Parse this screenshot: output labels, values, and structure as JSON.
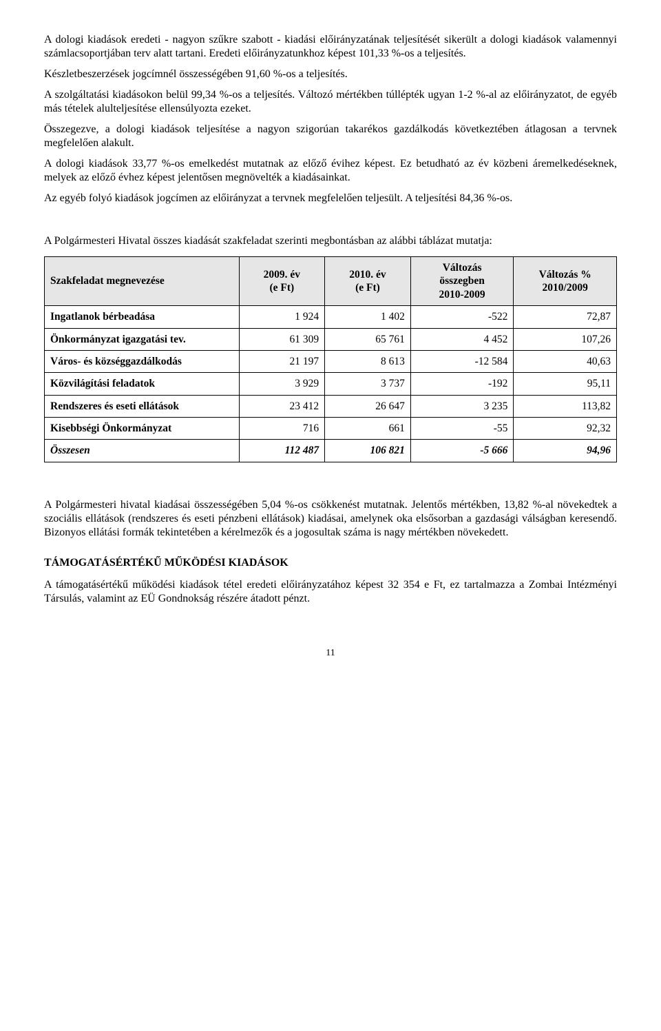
{
  "paragraphs": {
    "p1": "A dologi kiadások eredeti - nagyon szűkre szabott - kiadási előirányzatának teljesítését sikerült a dologi kiadások valamennyi számlacsoportjában terv alatt tartani. Eredeti előirányzatunkhoz képest 101,33 %-os a teljesítés.",
    "p2": "Készletbeszerzések jogcímnél összességében 91,60 %-os a teljesítés.",
    "p3": "A szolgáltatási kiadásokon belül 99,34 %-os a teljesítés. Változó mértékben túllépték ugyan 1-2 %-al az előirányzatot, de egyéb más tételek alulteljesítése ellensúlyozta ezeket.",
    "p4": "Összegezve, a dologi kiadások teljesítése a nagyon szigorúan takarékos gazdálkodás következtében átlagosan a tervnek megfelelően alakult.",
    "p5": "A dologi kiadások 33,77 %-os emelkedést mutatnak az előző évihez képest. Ez betudható az év közbeni áremelkedéseknek, melyek az előző évhez képest jelentősen megnövelték a kiadásainkat.",
    "p6": "Az egyéb folyó kiadások jogcímen az előirányzat a tervnek megfelelően teljesült. A teljesítési 84,36 %-os.",
    "p7": "A Polgármesteri Hivatal összes kiadását szakfeladat szerinti megbontásban az alábbi táblázat mutatja:",
    "p8": "A Polgármesteri hivatal kiadásai összességében 5,04 %-os csökkenést mutatnak. Jelentős mértékben, 13,82 %-al növekedtek a szociális ellátások (rendszeres és eseti pénzbeni ellátások) kiadásai, amelynek oka elsősorban a gazdasági válságban keresendő. Bizonyos ellátási formák tekintetében a kérelmezők és a jogosultak száma is nagy mértékben növekedett.",
    "p9": "A támogatásértékű működési kiadások tétel eredeti előirányzatához képest 32 354 e Ft, ez tartalmazza a Zombai Intézményi Társulás, valamint az EÜ Gondnokság részére átadott pénzt."
  },
  "section_title": "TÁMOGATÁSÉRTÉKŰ  MŰKÖDÉSI  KIADÁSOK",
  "table": {
    "headers": {
      "col1": "Szakfeladat megnevezése",
      "col2_line1": "2009. év",
      "col2_line2": "(e Ft)",
      "col3_line1": "2010. év",
      "col3_line2": "(e Ft)",
      "col4_line1": "Változás",
      "col4_line2": "összegben",
      "col4_line3": "2010-2009",
      "col5_line1": "Változás %",
      "col5_line2": "2010/2009"
    },
    "rows": [
      {
        "label": "Ingatlanok bérbeadása",
        "c1": "1 924",
        "c2": "1 402",
        "c3": "-522",
        "c4": "72,87"
      },
      {
        "label": "Önkormányzat igazgatási tev.",
        "c1": "61 309",
        "c2": "65 761",
        "c3": "4 452",
        "c4": "107,26"
      },
      {
        "label": "Város- és községgazdálkodás",
        "c1": "21 197",
        "c2": "8 613",
        "c3": "-12 584",
        "c4": "40,63"
      },
      {
        "label": "Közvilágítási feladatok",
        "c1": "3 929",
        "c2": "3 737",
        "c3": "-192",
        "c4": "95,11"
      },
      {
        "label": "Rendszeres és eseti ellátások",
        "c1": "23 412",
        "c2": "26 647",
        "c3": "3 235",
        "c4": "113,82"
      },
      {
        "label": "Kisebbségi Önkormányzat",
        "c1": "716",
        "c2": "661",
        "c3": "-55",
        "c4": "92,32"
      }
    ],
    "total": {
      "label": "Összesen",
      "c1": "112 487",
      "c2": "106 821",
      "c3": "-5 666",
      "c4": "94,96"
    },
    "col_widths": {
      "c1": "34%",
      "c2": "15%",
      "c3": "15%",
      "c4": "18%",
      "c5": "18%"
    },
    "header_bg": "#e6e6e6",
    "border_color": "#000000"
  },
  "page_number": "11"
}
